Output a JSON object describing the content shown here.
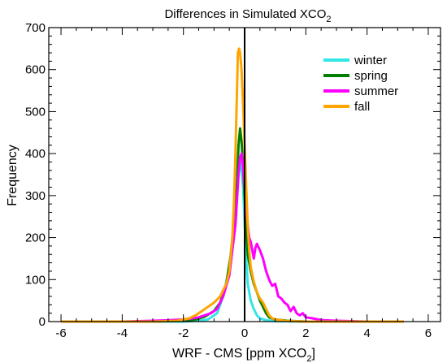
{
  "chart_data": {
    "type": "line",
    "title": "Differences in Simulated XCO",
    "title_subscript": "2",
    "xlabel": "WRF - CMS [ppm XCO",
    "xlabel_subscript": "2",
    "xlabel_suffix": "]",
    "ylabel": "Frequency",
    "xlim": [
      -6.4,
      6.4
    ],
    "ylim": [
      0,
      700
    ],
    "xticks": [
      -6,
      -4,
      -2,
      0,
      2,
      4,
      6
    ],
    "yticks": [
      0,
      100,
      200,
      300,
      400,
      500,
      600,
      700
    ],
    "xtick_labels": [
      "-6",
      "-4",
      "-2",
      "0",
      "2",
      "4",
      "6"
    ],
    "ytick_labels": [
      "0",
      "100",
      "200",
      "300",
      "400",
      "500",
      "600",
      "700"
    ],
    "vertical_line_x": 0,
    "legend_position": "top-right",
    "grid": false,
    "series": [
      {
        "name": "winter",
        "color": "#33e6e6",
        "points": [
          [
            -6.0,
            0
          ],
          [
            -3.0,
            0
          ],
          [
            -2.0,
            0
          ],
          [
            -1.5,
            2
          ],
          [
            -1.2,
            5
          ],
          [
            -0.9,
            20
          ],
          [
            -0.7,
            60
          ],
          [
            -0.5,
            130
          ],
          [
            -0.4,
            200
          ],
          [
            -0.3,
            280
          ],
          [
            -0.2,
            350
          ],
          [
            -0.15,
            380
          ],
          [
            -0.1,
            360
          ],
          [
            -0.05,
            320
          ],
          [
            0.0,
            240
          ],
          [
            0.05,
            150
          ],
          [
            0.1,
            90
          ],
          [
            0.2,
            50
          ],
          [
            0.3,
            30
          ],
          [
            0.4,
            15
          ],
          [
            0.5,
            8
          ],
          [
            0.7,
            3
          ],
          [
            1.0,
            1
          ],
          [
            2.0,
            0
          ],
          [
            5.2,
            0
          ]
        ]
      },
      {
        "name": "spring",
        "color": "#007f00",
        "points": [
          [
            -6.0,
            0
          ],
          [
            -3.0,
            0
          ],
          [
            -2.0,
            2
          ],
          [
            -1.6,
            5
          ],
          [
            -1.3,
            12
          ],
          [
            -1.0,
            25
          ],
          [
            -0.8,
            45
          ],
          [
            -0.6,
            90
          ],
          [
            -0.45,
            160
          ],
          [
            -0.35,
            230
          ],
          [
            -0.25,
            330
          ],
          [
            -0.2,
            420
          ],
          [
            -0.15,
            460
          ],
          [
            -0.1,
            430
          ],
          [
            -0.05,
            370
          ],
          [
            0.0,
            300
          ],
          [
            0.05,
            220
          ],
          [
            0.1,
            160
          ],
          [
            0.2,
            120
          ],
          [
            0.3,
            90
          ],
          [
            0.4,
            70
          ],
          [
            0.5,
            50
          ],
          [
            0.6,
            35
          ],
          [
            0.7,
            20
          ],
          [
            0.8,
            10
          ],
          [
            1.0,
            5
          ],
          [
            1.4,
            2
          ],
          [
            2.0,
            0
          ],
          [
            5.2,
            0
          ]
        ]
      },
      {
        "name": "summer",
        "color": "#ff00ff",
        "points": [
          [
            -6.0,
            0
          ],
          [
            -4.0,
            0
          ],
          [
            -3.0,
            2
          ],
          [
            -2.5,
            3
          ],
          [
            -2.0,
            5
          ],
          [
            -1.7,
            8
          ],
          [
            -1.5,
            10
          ],
          [
            -1.3,
            15
          ],
          [
            -1.1,
            20
          ],
          [
            -0.9,
            30
          ],
          [
            -0.7,
            60
          ],
          [
            -0.5,
            110
          ],
          [
            -0.4,
            170
          ],
          [
            -0.3,
            230
          ],
          [
            -0.25,
            290
          ],
          [
            -0.2,
            350
          ],
          [
            -0.15,
            390
          ],
          [
            -0.1,
            400
          ],
          [
            -0.05,
            370
          ],
          [
            0.0,
            320
          ],
          [
            0.05,
            270
          ],
          [
            0.1,
            230
          ],
          [
            0.15,
            200
          ],
          [
            0.2,
            190
          ],
          [
            0.25,
            170
          ],
          [
            0.3,
            150
          ],
          [
            0.35,
            175
          ],
          [
            0.4,
            185
          ],
          [
            0.5,
            170
          ],
          [
            0.6,
            150
          ],
          [
            0.7,
            120
          ],
          [
            0.8,
            100
          ],
          [
            0.9,
            85
          ],
          [
            1.0,
            90
          ],
          [
            1.1,
            60
          ],
          [
            1.2,
            55
          ],
          [
            1.3,
            45
          ],
          [
            1.4,
            40
          ],
          [
            1.5,
            25
          ],
          [
            1.6,
            35
          ],
          [
            1.7,
            20
          ],
          [
            1.8,
            15
          ],
          [
            1.9,
            20
          ],
          [
            2.0,
            10
          ],
          [
            2.2,
            8
          ],
          [
            2.4,
            5
          ],
          [
            2.6,
            3
          ],
          [
            3.0,
            2
          ],
          [
            3.5,
            1
          ],
          [
            4.0,
            0
          ],
          [
            5.2,
            0
          ]
        ]
      },
      {
        "name": "fall",
        "color": "#ffa500",
        "points": [
          [
            -6.0,
            0
          ],
          [
            -3.0,
            0
          ],
          [
            -2.2,
            2
          ],
          [
            -1.8,
            8
          ],
          [
            -1.6,
            15
          ],
          [
            -1.4,
            25
          ],
          [
            -1.2,
            35
          ],
          [
            -1.0,
            45
          ],
          [
            -0.8,
            60
          ],
          [
            -0.6,
            90
          ],
          [
            -0.5,
            120
          ],
          [
            -0.4,
            200
          ],
          [
            -0.35,
            280
          ],
          [
            -0.3,
            400
          ],
          [
            -0.25,
            550
          ],
          [
            -0.22,
            640
          ],
          [
            -0.18,
            650
          ],
          [
            -0.15,
            640
          ],
          [
            -0.1,
            600
          ],
          [
            -0.05,
            520
          ],
          [
            0.0,
            420
          ],
          [
            0.05,
            320
          ],
          [
            0.1,
            230
          ],
          [
            0.15,
            170
          ],
          [
            0.2,
            130
          ],
          [
            0.3,
            95
          ],
          [
            0.4,
            70
          ],
          [
            0.5,
            55
          ],
          [
            0.6,
            45
          ],
          [
            0.7,
            30
          ],
          [
            0.8,
            15
          ],
          [
            0.9,
            8
          ],
          [
            1.0,
            5
          ],
          [
            1.3,
            2
          ],
          [
            2.0,
            0
          ],
          [
            5.2,
            0
          ]
        ]
      }
    ]
  }
}
